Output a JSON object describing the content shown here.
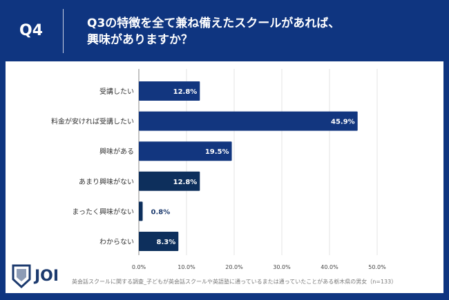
{
  "header": {
    "question_no": "Q4",
    "title_line1": "Q3の特徴を全て兼ね備えたスクールがあれば、",
    "title_line2": "興味がありますか？"
  },
  "footer": {
    "logo_text": "JOI",
    "note": "英会話スクールに関する調査_子どもが英会話スクールや英語塾に通っているまたは通っていたことがある栃木県の男女（n=133）"
  },
  "colors": {
    "background": "#0f3580",
    "bar_interest": "#12367f",
    "bar_no_interest": "#0d2f5c",
    "grid": "#e3e3e3"
  },
  "chart_data": {
    "type": "bar",
    "orientation": "horizontal",
    "categories": [
      "受講したい",
      "料金が安ければ受講したい",
      "興味がある",
      "あまり興味がない",
      "まったく興味がない",
      "わからない"
    ],
    "values": [
      12.8,
      45.9,
      19.5,
      12.8,
      0.8,
      8.3
    ],
    "data_labels": [
      "12.8%",
      "45.9%",
      "19.5%",
      "12.8%",
      "0.8%",
      "8.3%"
    ],
    "xlim": [
      0,
      50
    ],
    "xticks": [
      "0.0%",
      "10.0%",
      "20.0%",
      "30.0%",
      "40.0%",
      "50.0%"
    ],
    "grid": true
  }
}
